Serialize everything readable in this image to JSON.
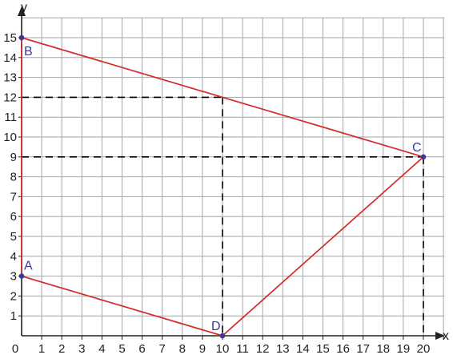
{
  "chart_data": {
    "type": "scatter",
    "xlabel": "x",
    "ylabel": "y",
    "xlim": [
      0,
      20
    ],
    "ylim": [
      0,
      15
    ],
    "x_ticks": [
      "0",
      "1",
      "2",
      "3",
      "4",
      "5",
      "6",
      "7",
      "8",
      "9",
      "10",
      "11",
      "12",
      "13",
      "14",
      "15",
      "16",
      "17",
      "18",
      "19",
      "20"
    ],
    "y_ticks": [
      "1",
      "2",
      "3",
      "4",
      "5",
      "6",
      "7",
      "8",
      "9",
      "10",
      "11",
      "12",
      "13",
      "14",
      "15"
    ],
    "grid": true,
    "points": [
      {
        "label": "A",
        "x": 0,
        "y": 3
      },
      {
        "label": "B",
        "x": 0,
        "y": 15
      },
      {
        "label": "C",
        "x": 20,
        "y": 9
      },
      {
        "label": "D",
        "x": 10,
        "y": 0
      }
    ],
    "polygon": [
      "A",
      "B",
      "C",
      "D"
    ],
    "guides": [
      {
        "from": [
          0,
          12
        ],
        "to": [
          10,
          12
        ]
      },
      {
        "from": [
          10,
          12
        ],
        "to": [
          10,
          0
        ]
      },
      {
        "from": [
          0,
          9
        ],
        "to": [
          20,
          9
        ]
      },
      {
        "from": [
          20,
          9
        ],
        "to": [
          20,
          0
        ]
      }
    ],
    "colors": {
      "polygon": "#d42a2a",
      "points": "#3a3a9a",
      "grid": "#a6a6a6",
      "axis": "#222222",
      "guides": "#000000"
    }
  }
}
